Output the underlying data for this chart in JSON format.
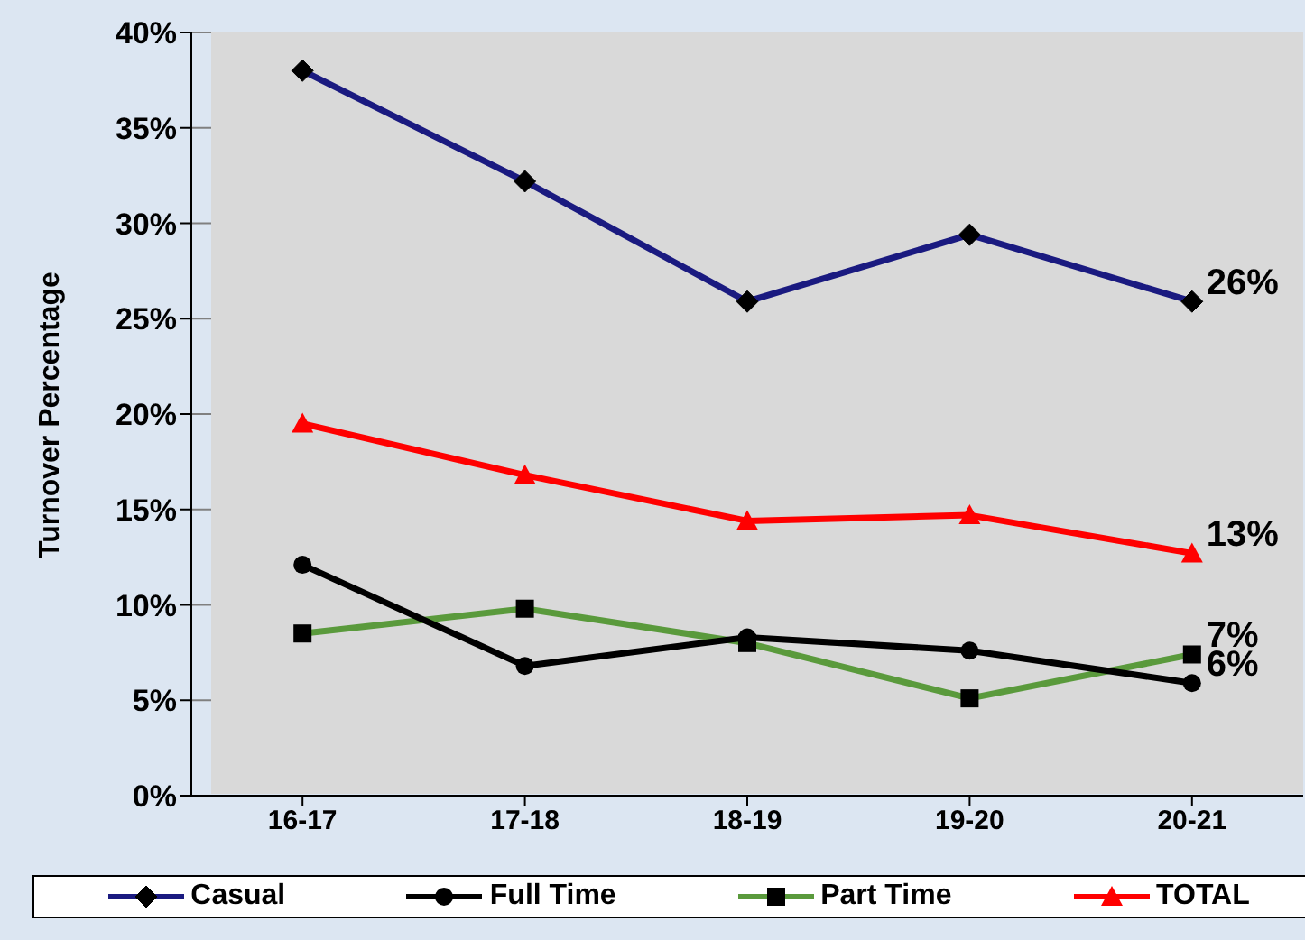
{
  "chart_data": {
    "type": "line",
    "ylabel": "Turnover Percentage",
    "categories": [
      "16-17",
      "17-18",
      "18-19",
      "19-20",
      "20-21"
    ],
    "series": [
      {
        "name": "Casual",
        "color": "#1a1a80",
        "marker": "diamond",
        "values": [
          38.0,
          32.2,
          25.9,
          29.4,
          25.9
        ],
        "value_labels": [
          null,
          null,
          null,
          null,
          "26%"
        ]
      },
      {
        "name": "Full Time",
        "color": "#000000",
        "marker": "circle",
        "values": [
          12.1,
          6.8,
          8.3,
          7.6,
          5.9
        ],
        "value_labels": [
          null,
          null,
          null,
          null,
          "6%"
        ]
      },
      {
        "name": "Part Time",
        "color": "#5a9a3c",
        "marker": "square",
        "values": [
          8.5,
          9.8,
          8.0,
          5.1,
          7.4
        ],
        "value_labels": [
          null,
          null,
          null,
          null,
          "7%"
        ]
      },
      {
        "name": "TOTAL",
        "color": "#ff0000",
        "marker": "triangle",
        "values": [
          19.5,
          16.8,
          14.4,
          14.7,
          12.7
        ],
        "value_labels": [
          null,
          null,
          null,
          null,
          "13%"
        ]
      }
    ],
    "ylim": [
      0,
      40
    ],
    "yticks": [
      {
        "value": 0,
        "label": "0%"
      },
      {
        "value": 5,
        "label": "5%"
      },
      {
        "value": 10,
        "label": "10%"
      },
      {
        "value": 15,
        "label": "15%"
      },
      {
        "value": 20,
        "label": "20%"
      },
      {
        "value": 25,
        "label": "25%"
      },
      {
        "value": 30,
        "label": "30%"
      },
      {
        "value": 35,
        "label": "35%"
      },
      {
        "value": 40,
        "label": "40%"
      }
    ],
    "grid": "y",
    "legend": "bottom"
  }
}
